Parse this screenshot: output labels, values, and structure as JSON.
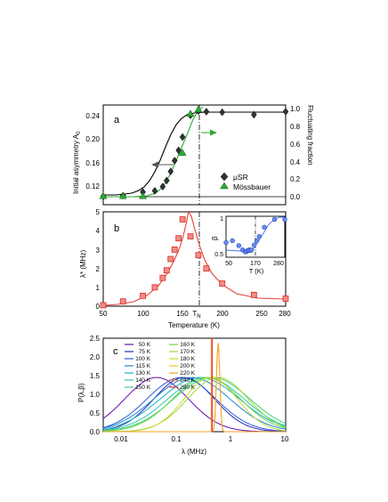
{
  "chart_data": [
    {
      "panel_label": "a",
      "type": "scatter",
      "xlim": [
        50,
        280
      ],
      "ylim": [
        0.09,
        0.255
      ],
      "ylabel": "Initial asymmetry A",
      "ylabel_sub": "0",
      "y2label": "Fluctuating fraction",
      "y2lim": [
        -0.1,
        1.05
      ],
      "yticks": [
        "0.12",
        "0.16",
        "0.20",
        "0.24"
      ],
      "y2ticks": [
        "0.0",
        "0.2",
        "0.4",
        "0.6",
        "0.8",
        "1.0"
      ],
      "legend": [
        {
          "name": "μSR",
          "marker": "diamond",
          "color": "#333333"
        },
        {
          "name": "Mössbauer",
          "marker": "triangle",
          "color": "#2ea836"
        }
      ],
      "series": [
        {
          "name": "μSR",
          "axis": "left",
          "x": [
            50,
            75,
            100,
            115,
            125,
            130,
            135,
            140,
            145,
            150,
            160,
            170,
            180,
            200,
            240,
            280
          ],
          "y": [
            0.104,
            0.105,
            0.111,
            0.113,
            0.12,
            0.13,
            0.145,
            0.163,
            0.18,
            0.202,
            0.238,
            0.245,
            0.244,
            0.243,
            0.239,
            0.244
          ]
        },
        {
          "name": "Mössbauer",
          "axis": "right",
          "x": [
            50,
            75,
            100,
            150,
            160,
            170
          ],
          "y": [
            0.0,
            0.0,
            0.0,
            0.5,
            0.95,
            1.0
          ]
        }
      ]
    },
    {
      "panel_label": "b",
      "type": "scatter",
      "xlim": [
        50,
        280
      ],
      "ylim": [
        0,
        5
      ],
      "ylabel": "λ* (MHz)",
      "yticks": [
        "0",
        "1",
        "2",
        "3",
        "4",
        "5"
      ],
      "xticks": [
        "50",
        "100",
        "150",
        "T",
        "200",
        "250",
        "280"
      ],
      "tn_label": "T",
      "tn_label_sub": "N",
      "xlabel": "Temperature (K)",
      "series": [
        {
          "name": "λ*",
          "color": "#e8403a",
          "x": [
            50,
            75,
            100,
            115,
            125,
            130,
            135,
            140,
            145,
            150,
            160,
            170,
            180,
            200,
            240,
            280
          ],
          "y": [
            0.05,
            0.25,
            0.55,
            1.0,
            1.5,
            1.9,
            2.5,
            3.0,
            3.6,
            4.6,
            3.7,
            2.7,
            2.0,
            1.2,
            0.6,
            0.4
          ]
        }
      ],
      "inset": {
        "xlabel": "T (K)",
        "ylabel": "β",
        "xticks": [
          "50",
          "170",
          "280"
        ],
        "yticks": [
          "0.5",
          "1"
        ],
        "xlim": [
          50,
          280
        ],
        "ylim": [
          0.38,
          1.05
        ],
        "series": [
          {
            "name": "β",
            "color": "#4a72e8",
            "x": [
              50,
              75,
              100,
              115,
              125,
              130,
              135,
              140,
              145,
              150,
              160,
              170,
              180,
              200,
              240,
              280
            ],
            "y": [
              0.62,
              0.65,
              0.57,
              0.5,
              0.47,
              0.47,
              0.49,
              0.5,
              0.49,
              0.5,
              0.58,
              0.65,
              0.72,
              0.87,
              1.0,
              1.0
            ]
          }
        ]
      }
    },
    {
      "panel_label": "c",
      "type": "line",
      "xscale": "log",
      "xlim": [
        0.005,
        10
      ],
      "ylim": [
        0,
        2.5
      ],
      "xlabel": "λ (MHz)",
      "ylabel": "P(λ,β)",
      "xticks": [
        "0.01",
        "0.1",
        "1",
        "10"
      ],
      "yticks": [
        "0.0",
        "0.5",
        "1.0",
        "1.5",
        "2.0",
        "2.5"
      ],
      "series": [
        {
          "name": "50 K",
          "color": "#6a0dad",
          "lambda": 0.021,
          "beta": 0.62
        },
        {
          "name": "75 K",
          "color": "#2a2ab5",
          "lambda": 0.066,
          "beta": 0.65
        },
        {
          "name": "100 K",
          "color": "#2c5ad6",
          "lambda": 0.13,
          "beta": 0.57
        },
        {
          "name": "115 K",
          "color": "#1f86d6",
          "lambda": 0.2,
          "beta": 0.5
        },
        {
          "name": "130 K",
          "color": "#1eb0c8",
          "lambda": 0.28,
          "beta": 0.47
        },
        {
          "name": "140 K",
          "color": "#2ecba8",
          "lambda": 0.36,
          "beta": 0.5
        },
        {
          "name": "150 K",
          "color": "#3fd07a",
          "lambda": 0.46,
          "beta": 0.5
        },
        {
          "name": "160 K",
          "color": "#6ad44a",
          "lambda": 0.37,
          "beta": 0.58
        },
        {
          "name": "170 K",
          "color": "#9bd83a",
          "lambda": 0.27,
          "beta": 0.65
        },
        {
          "name": "180 K",
          "color": "#c8d830",
          "lambda": 0.2,
          "beta": 0.72
        },
        {
          "name": "200 K",
          "color": "#e6c82a",
          "lambda": 0.12,
          "beta": 0.87
        },
        {
          "name": "220 K",
          "color": "#f0a326",
          "lambda": 0.08,
          "beta": 0.96
        },
        {
          "name": "240 K",
          "color": "#ec7a26",
          "lambda": 0.06,
          "beta": 1.0
        },
        {
          "name": "280 K",
          "color": "#e0352a",
          "lambda": 0.04,
          "beta": 1.0
        }
      ]
    }
  ]
}
